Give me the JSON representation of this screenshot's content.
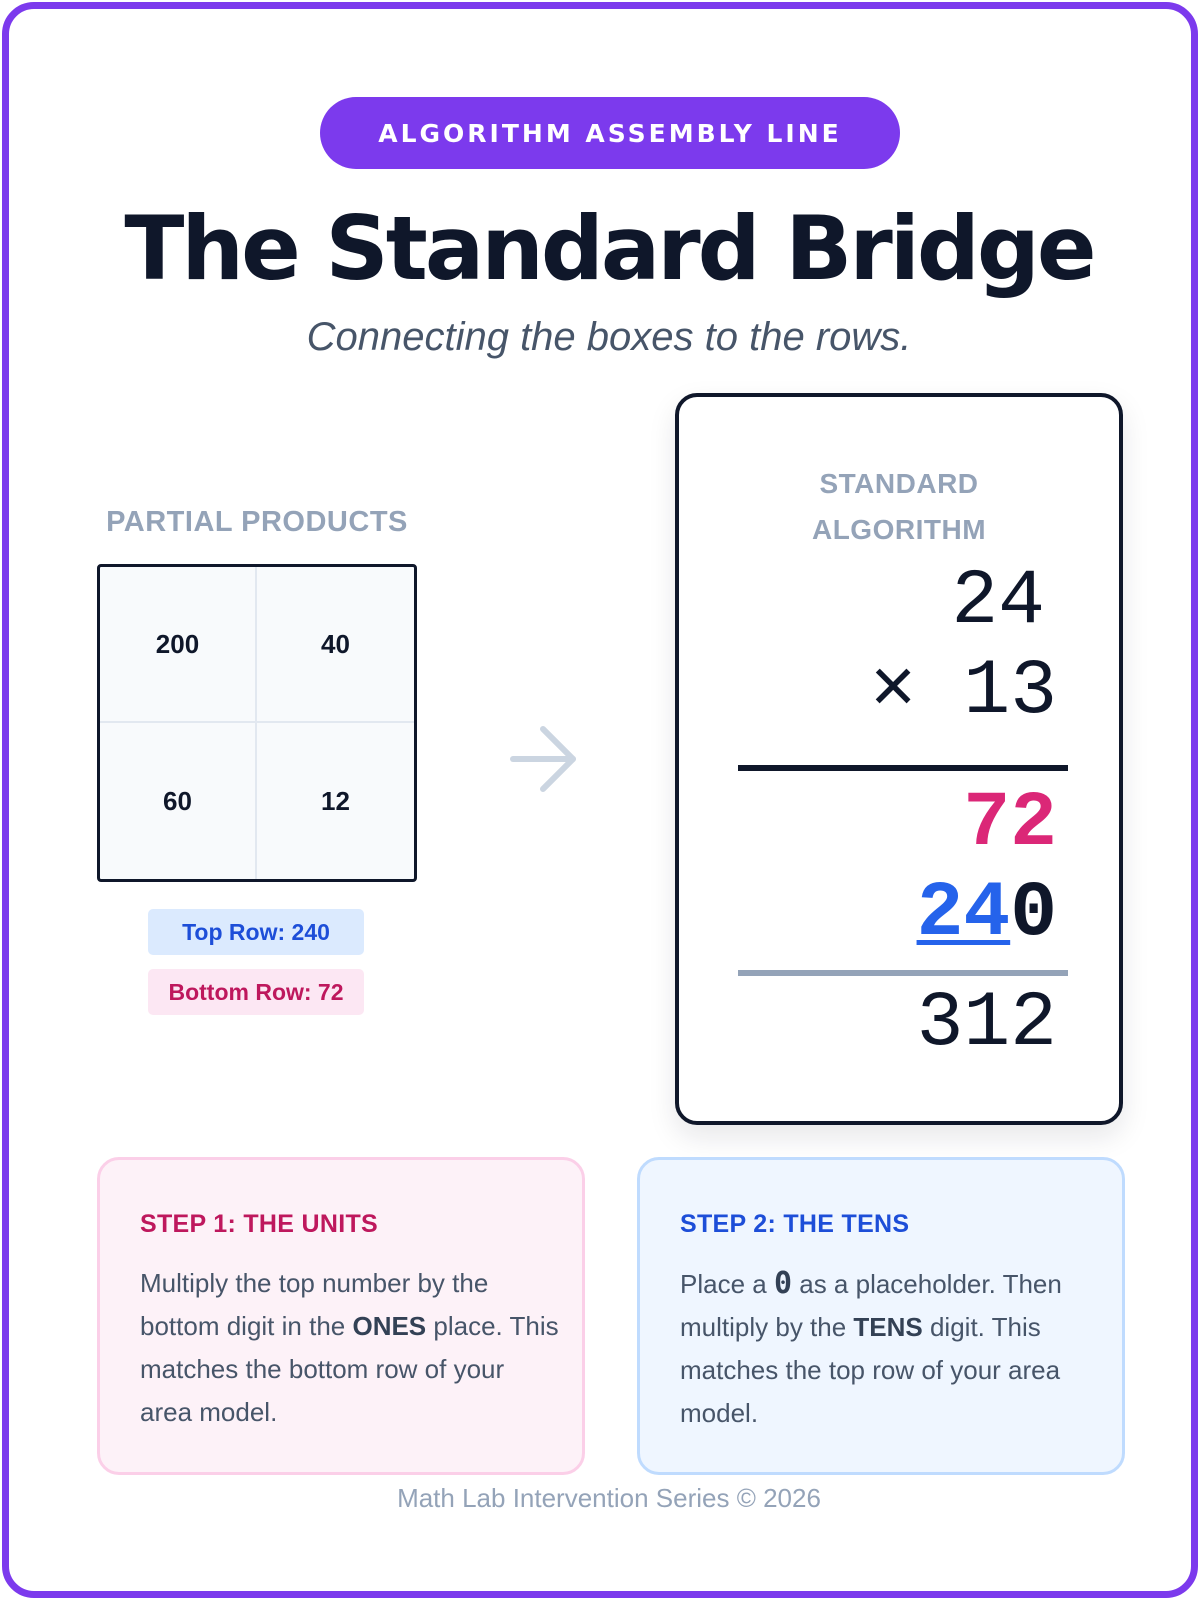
{
  "header": {
    "badge": "ALGORITHM ASSEMBLY LINE",
    "title": "The Standard Bridge",
    "subtitle": "Connecting the boxes to the rows."
  },
  "partial_products": {
    "heading": "PARTIAL PRODUCTS",
    "cells": [
      "200",
      "40",
      "60",
      "12"
    ],
    "top_row_label": "Top Row: 240",
    "bottom_row_label": "Bottom Row: 72"
  },
  "arrow_icon": "arrow-right-icon",
  "algorithm": {
    "heading_line1": "STANDARD",
    "heading_line2": "ALGORITHM",
    "multiplicand": "24",
    "multiplier": "× 13",
    "partial_units": "72",
    "partial_tens_digits": "24",
    "partial_tens_placeholder": "0",
    "total": "312"
  },
  "steps": [
    {
      "title": "STEP 1: THE UNITS",
      "body_1": "Multiply the top number by the bottom digit in the ",
      "bold_1": "ONES",
      "body_2": " place. This matches the bottom row of your area model."
    },
    {
      "title": "STEP 2: THE TENS",
      "body_1": "Place a ",
      "bold_1": "0",
      "body_2": " as a placeholder. Then multiply by the ",
      "bold_2": "TENS",
      "body_3": " digit. This matches the top row of your area model."
    }
  ],
  "footer": "Math Lab Intervention Series © 2026",
  "colors": {
    "accent": "#7c3aed",
    "units": "#db2777",
    "tens": "#2563eb",
    "ink": "#0f172a",
    "muted": "#94a3b8"
  }
}
